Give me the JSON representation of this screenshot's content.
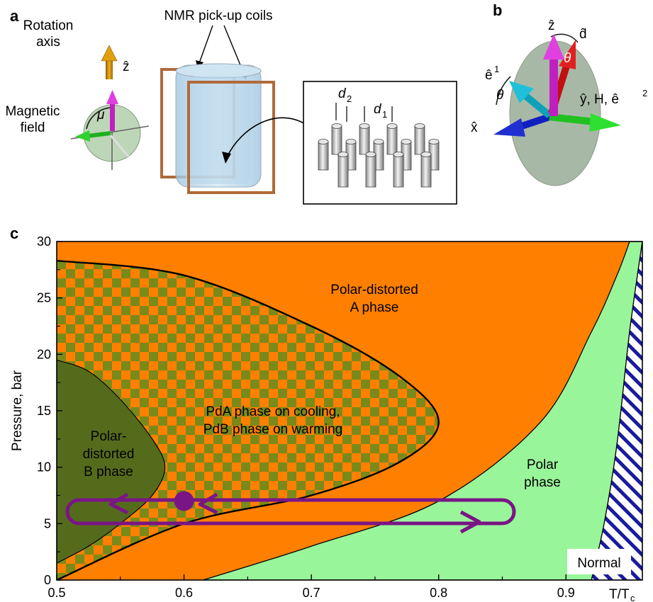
{
  "panel_a": {
    "label": "a",
    "rotation_axis": [
      "Rotation",
      "axis"
    ],
    "z_label": "ẑ",
    "magnetic_field": [
      "Magnetic",
      "field"
    ],
    "mu": "μ",
    "coils_label": "NMR pick-up coils",
    "d2": "d",
    "d2_sub": "2",
    "d1": "d",
    "d1_sub": "1"
  },
  "panel_b": {
    "label": "b",
    "z": "ẑ",
    "d": "d̂",
    "theta": "θ",
    "e1": "ê",
    "e1_sup": "1",
    "y_label": "ŷ, H, ê",
    "y_sup": "2",
    "x": "x̂"
  },
  "panel_c": {
    "label": "c",
    "ylabel": "Pressure, bar",
    "xlabel": "T/T",
    "xlabel_sub": "c",
    "x_ticks": [
      "0.5",
      "0.6",
      "0.7",
      "0.8",
      "0.9"
    ],
    "y_ticks": [
      "0",
      "5",
      "10",
      "15",
      "20",
      "25",
      "30"
    ],
    "regions": {
      "pda": [
        "Polar-distorted",
        "A phase"
      ],
      "mixed": [
        "PdA phase on cooling,",
        "PdB phase on warming"
      ],
      "pdb": [
        "Polar-",
        "distorted",
        "B phase"
      ],
      "polar": [
        "Polar",
        "phase"
      ],
      "normal": "Normal"
    },
    "colors": {
      "pda": "#ff8000",
      "pdb": "#556b1c",
      "polar": "#99f59a",
      "normal_hatch": "#1a1aa0",
      "loop": "#7a1586",
      "checker": "#7a8a1a"
    }
  },
  "chart_data": {
    "type": "area",
    "title": "",
    "xlabel": "T/Tc",
    "ylabel": "Pressure, bar",
    "xlim": [
      0.5,
      0.96
    ],
    "ylim": [
      0,
      30
    ],
    "boundaries": [
      {
        "name": "PdB phase boundary",
        "x": [
          0.5,
          0.525,
          0.55,
          0.575,
          0.585,
          0.575,
          0.55,
          0.525,
          0.5
        ],
        "y": [
          19.5,
          18.5,
          16,
          12.5,
          10,
          7.5,
          5,
          3,
          1.5
        ]
      },
      {
        "name": "Hysteresis region boundary",
        "x": [
          0.5,
          0.6,
          0.7,
          0.77,
          0.8,
          0.77,
          0.7,
          0.6,
          0.5
        ],
        "y": [
          28.3,
          27,
          22.5,
          18,
          14,
          10.5,
          7.5,
          5,
          0
        ]
      },
      {
        "name": "Polar phase boundary",
        "x": [
          0.615,
          0.7,
          0.8,
          0.88,
          0.92,
          0.94,
          0.95
        ],
        "y": [
          0,
          3,
          7,
          14,
          22,
          27,
          30
        ]
      },
      {
        "name": "Normal phase boundary",
        "x": [
          0.92,
          0.93,
          0.94,
          0.95,
          0.96
        ],
        "y": [
          0,
          5,
          12,
          22,
          30
        ]
      }
    ],
    "path_point": {
      "x": 0.6,
      "y": 7
    }
  }
}
